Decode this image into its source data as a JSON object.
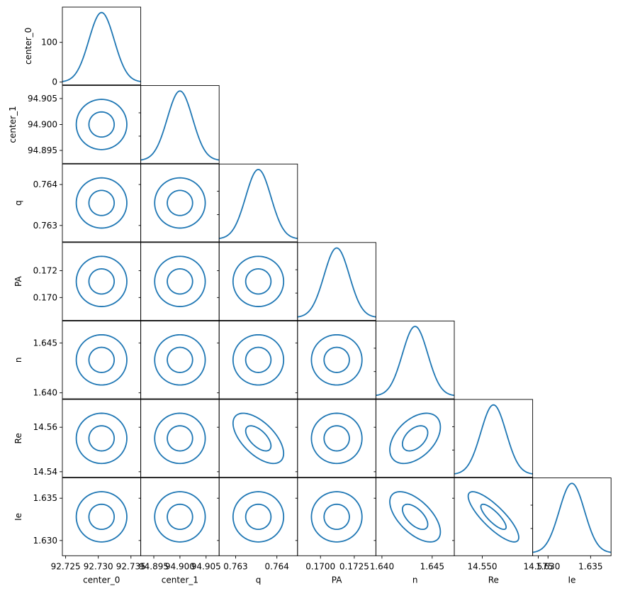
{
  "chart_data": {
    "type": "corner",
    "title": "",
    "params": [
      "center_0",
      "center_1",
      "q",
      "PA",
      "n",
      "Re",
      "Ie"
    ],
    "line_color": "#1f77b4",
    "frame_color": "#000000",
    "means": [
      92.7305,
      94.9,
      0.76355,
      0.1712,
      1.6433,
      14.555,
      1.6328
    ],
    "ranges": [
      [
        92.7245,
        92.7365
      ],
      [
        94.8925,
        94.9075
      ],
      [
        0.7626,
        0.7645
      ],
      [
        0.1683,
        0.1741
      ],
      [
        1.6394,
        1.6472
      ],
      [
        14.5375,
        14.5725
      ],
      [
        1.6282,
        1.6374
      ]
    ],
    "ytick_labels": {
      "center_0": [
        "0",
        "100"
      ],
      "center_1": [
        "94.895",
        "94.900",
        "94.905"
      ],
      "q": [
        "0.763",
        "0.764"
      ],
      "PA": [
        "0.170",
        "0.172"
      ],
      "n": [
        "1.640",
        "1.645"
      ],
      "Re": [
        "14.54",
        "14.56"
      ],
      "Ie": [
        "1.630",
        "1.635"
      ]
    },
    "xtick_labels": {
      "center_0": [
        "92.725",
        "92.730",
        "92.735"
      ],
      "center_1": [
        "94.895",
        "94.900",
        "94.905"
      ],
      "q": [
        "0.763",
        "0.764"
      ],
      "PA": [
        "0.1700",
        "0.1725"
      ],
      "n": [
        "1.640",
        "1.645"
      ],
      "Re": [
        "14.550",
        "14.575"
      ],
      "Ie": [
        "1.630",
        "1.635"
      ]
    },
    "diag_density_ylim_first": [
      0,
      180
    ],
    "diag_density_peak_first": 175,
    "contour_levels": [
      1,
      2
    ],
    "correlations": [
      {
        "row": "Re",
        "col": "q",
        "rho": -0.6
      },
      {
        "row": "Re",
        "col": "n",
        "rho": 0.45
      },
      {
        "row": "Ie",
        "col": "n",
        "rho": -0.6
      },
      {
        "row": "Ie",
        "col": "Re",
        "rho": -0.82
      }
    ]
  }
}
